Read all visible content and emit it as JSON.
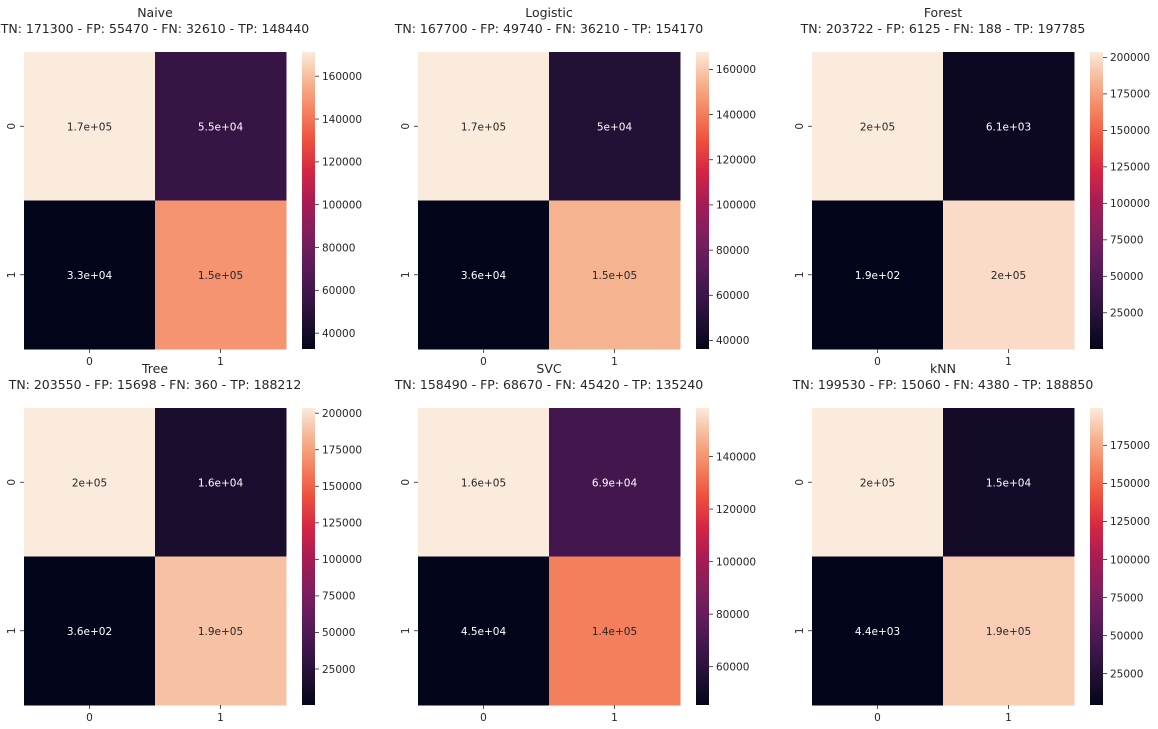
{
  "chart_data": [
    {
      "type": "heatmap",
      "title": "Naive",
      "subtitle": "TN: 171300 - FP: 55470 - FN: 32610 - TP: 148440",
      "x_categories": [
        "0",
        "1"
      ],
      "y_categories": [
        "0",
        "1"
      ],
      "values": [
        [
          171300,
          55470
        ],
        [
          32610,
          148440
        ]
      ],
      "cell_labels": [
        [
          "1.7e+05",
          "5.5e+04"
        ],
        [
          "3.3e+04",
          "1.5e+05"
        ]
      ],
      "colorbar_ticks": [
        40000,
        60000,
        80000,
        100000,
        120000,
        140000,
        160000
      ],
      "colorbar_range": [
        32610,
        171300
      ]
    },
    {
      "type": "heatmap",
      "title": "Logistic",
      "subtitle": "TN: 167700 - FP: 49740 - FN: 36210 - TP: 154170",
      "x_categories": [
        "0",
        "1"
      ],
      "y_categories": [
        "0",
        "1"
      ],
      "values": [
        [
          167700,
          49740
        ],
        [
          36210,
          154170
        ]
      ],
      "cell_labels": [
        [
          "1.7e+05",
          "5e+04"
        ],
        [
          "3.6e+04",
          "1.5e+05"
        ]
      ],
      "colorbar_ticks": [
        40000,
        60000,
        80000,
        100000,
        120000,
        140000,
        160000
      ],
      "colorbar_range": [
        36210,
        167700
      ]
    },
    {
      "type": "heatmap",
      "title": "Forest",
      "subtitle": "TN: 203722 - FP: 6125 - FN: 188 - TP: 197785",
      "x_categories": [
        "0",
        "1"
      ],
      "y_categories": [
        "0",
        "1"
      ],
      "values": [
        [
          203722,
          6125
        ],
        [
          188,
          197785
        ]
      ],
      "cell_labels": [
        [
          "2e+05",
          "6.1e+03"
        ],
        [
          "1.9e+02",
          "2e+05"
        ]
      ],
      "colorbar_ticks": [
        25000,
        50000,
        75000,
        100000,
        125000,
        150000,
        175000,
        200000
      ],
      "colorbar_range": [
        188,
        203722
      ]
    },
    {
      "type": "heatmap",
      "title": "Tree",
      "subtitle": "TN: 203550 - FP: 15698 - FN: 360 - TP: 188212",
      "x_categories": [
        "0",
        "1"
      ],
      "y_categories": [
        "0",
        "1"
      ],
      "values": [
        [
          203550,
          15698
        ],
        [
          360,
          188212
        ]
      ],
      "cell_labels": [
        [
          "2e+05",
          "1.6e+04"
        ],
        [
          "3.6e+02",
          "1.9e+05"
        ]
      ],
      "colorbar_ticks": [
        25000,
        50000,
        75000,
        100000,
        125000,
        150000,
        175000,
        200000
      ],
      "colorbar_range": [
        360,
        203550
      ]
    },
    {
      "type": "heatmap",
      "title": "SVC",
      "subtitle": "TN: 158490 - FP: 68670 - FN: 45420 - TP: 135240",
      "x_categories": [
        "0",
        "1"
      ],
      "y_categories": [
        "0",
        "1"
      ],
      "values": [
        [
          158490,
          68670
        ],
        [
          45420,
          135240
        ]
      ],
      "cell_labels": [
        [
          "1.6e+05",
          "6.9e+04"
        ],
        [
          "4.5e+04",
          "1.4e+05"
        ]
      ],
      "colorbar_ticks": [
        60000,
        80000,
        100000,
        120000,
        140000
      ],
      "colorbar_range": [
        45420,
        158490
      ]
    },
    {
      "type": "heatmap",
      "title": "kNN",
      "subtitle": "TN: 199530 - FP: 15060 - FN: 4380 - TP: 188850",
      "x_categories": [
        "0",
        "1"
      ],
      "y_categories": [
        "0",
        "1"
      ],
      "values": [
        [
          199530,
          15060
        ],
        [
          4380,
          188850
        ]
      ],
      "cell_labels": [
        [
          "2e+05",
          "1.5e+04"
        ],
        [
          "4.4e+03",
          "1.9e+05"
        ]
      ],
      "colorbar_ticks": [
        25000,
        50000,
        75000,
        100000,
        125000,
        150000,
        175000
      ],
      "colorbar_range": [
        4380,
        199530
      ]
    }
  ]
}
